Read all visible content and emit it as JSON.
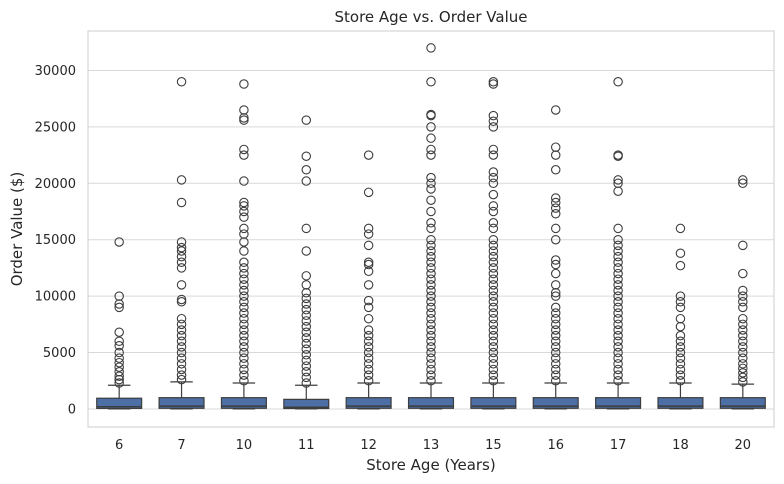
{
  "chart_data": {
    "type": "box",
    "title": "Store Age vs. Order Value",
    "xlabel": "Store Age (Years)",
    "ylabel": "Order Value ($)",
    "ylim": [
      -1600,
      33500
    ],
    "yticks": [
      0,
      5000,
      10000,
      15000,
      20000,
      25000,
      30000
    ],
    "grid": "horizontal",
    "colors": {
      "box_fill": "#4c6fa5",
      "box_edge": "#3d3d3d",
      "grid": "#d9d9d9",
      "axes_edge": "#cccccc"
    },
    "categories": [
      "6",
      "7",
      "10",
      "11",
      "12",
      "13",
      "15",
      "16",
      "17",
      "18",
      "20"
    ],
    "boxes": [
      {
        "q1": 50,
        "median": 200,
        "q3": 950,
        "whisker_low": 0,
        "whisker_high": 2100,
        "outliers": [
          2300,
          2600,
          2900,
          3300,
          3700,
          4100,
          4500,
          5000,
          5600,
          6000,
          6800,
          9000,
          9300,
          10000,
          14800
        ]
      },
      {
        "q1": 60,
        "median": 250,
        "q3": 1000,
        "whisker_low": 0,
        "whisker_high": 2400,
        "outliers": [
          2600,
          3000,
          3500,
          4000,
          4500,
          5000,
          5500,
          6000,
          6500,
          7000,
          7500,
          8000,
          9500,
          9700,
          11000,
          12500,
          13000,
          13500,
          14000,
          14300,
          14800,
          18300,
          20300,
          29000
        ]
      },
      {
        "q1": 60,
        "median": 250,
        "q3": 1000,
        "whisker_low": 0,
        "whisker_high": 2300,
        "outliers": [
          2500,
          3000,
          3500,
          4000,
          4500,
          5000,
          5500,
          6000,
          6500,
          7000,
          7500,
          8000,
          8500,
          9000,
          9500,
          10000,
          10500,
          11000,
          11500,
          12000,
          12500,
          13000,
          14000,
          14800,
          15500,
          16000,
          17000,
          17500,
          18000,
          18300,
          20200,
          22500,
          23000,
          25600,
          25800,
          26500,
          28800
        ]
      },
      {
        "q1": 40,
        "median": 150,
        "q3": 850,
        "whisker_low": 0,
        "whisker_high": 2100,
        "outliers": [
          2300,
          2800,
          3300,
          3800,
          4300,
          4800,
          5300,
          5800,
          6300,
          6800,
          7300,
          7800,
          8300,
          8800,
          9300,
          9800,
          10300,
          11000,
          11800,
          14000,
          16000,
          20200,
          21200,
          22400,
          25600
        ]
      },
      {
        "q1": 60,
        "median": 250,
        "q3": 1000,
        "whisker_low": 0,
        "whisker_high": 2300,
        "outliers": [
          2500,
          3000,
          3500,
          4000,
          4500,
          5000,
          5500,
          6000,
          6500,
          7000,
          8000,
          9000,
          9600,
          11000,
          12200,
          12800,
          13000,
          14500,
          15500,
          16000,
          19200,
          22500
        ]
      },
      {
        "q1": 60,
        "median": 250,
        "q3": 1000,
        "whisker_low": 0,
        "whisker_high": 2300,
        "outliers": [
          2500,
          3000,
          3500,
          4000,
          4500,
          5000,
          5500,
          6000,
          6500,
          7000,
          7500,
          8000,
          8500,
          9000,
          9500,
          10000,
          10500,
          11000,
          11500,
          12000,
          12500,
          13000,
          13500,
          14000,
          14500,
          15000,
          16000,
          16500,
          17500,
          18500,
          19500,
          20000,
          20500,
          22500,
          23000,
          24000,
          25000,
          26000,
          26100,
          29000,
          32000
        ]
      },
      {
        "q1": 60,
        "median": 250,
        "q3": 1000,
        "whisker_low": 0,
        "whisker_high": 2300,
        "outliers": [
          2500,
          3000,
          3500,
          4000,
          4500,
          5000,
          5500,
          6000,
          6500,
          7000,
          7500,
          8000,
          8500,
          9000,
          9500,
          10000,
          10500,
          11000,
          11500,
          12000,
          12500,
          13000,
          13500,
          14000,
          14500,
          15000,
          16000,
          16500,
          17500,
          18000,
          19000,
          20000,
          20500,
          21000,
          22500,
          23000,
          25000,
          25500,
          26000,
          28800,
          29000
        ]
      },
      {
        "q1": 60,
        "median": 250,
        "q3": 1000,
        "whisker_low": 0,
        "whisker_high": 2300,
        "outliers": [
          2500,
          3000,
          3500,
          4000,
          4500,
          5000,
          5500,
          6000,
          6500,
          7000,
          7500,
          8000,
          8500,
          9000,
          10000,
          10300,
          11000,
          12000,
          12800,
          13200,
          15000,
          16000,
          17300,
          17800,
          18300,
          18700,
          21200,
          22500,
          23200,
          26500
        ]
      },
      {
        "q1": 60,
        "median": 250,
        "q3": 1000,
        "whisker_low": 0,
        "whisker_high": 2300,
        "outliers": [
          2500,
          3000,
          3500,
          4000,
          4500,
          5000,
          5500,
          6000,
          6500,
          7000,
          7500,
          8000,
          8500,
          9000,
          9500,
          10000,
          10500,
          11000,
          11500,
          12000,
          12500,
          13000,
          13500,
          14000,
          14500,
          15000,
          16000,
          19300,
          20000,
          20300,
          22400,
          22500,
          29000
        ]
      },
      {
        "q1": 60,
        "median": 250,
        "q3": 1000,
        "whisker_low": 0,
        "whisker_high": 2300,
        "outliers": [
          2500,
          3000,
          3500,
          4000,
          4500,
          5000,
          5500,
          6000,
          6500,
          7300,
          8000,
          9000,
          9500,
          10000,
          12700,
          13800,
          16000
        ]
      },
      {
        "q1": 60,
        "median": 250,
        "q3": 1000,
        "whisker_low": 0,
        "whisker_high": 2200,
        "outliers": [
          2400,
          2800,
          3200,
          3600,
          4000,
          4500,
          5000,
          5500,
          6000,
          6500,
          7000,
          7500,
          8000,
          9000,
          9500,
          10000,
          10500,
          12000,
          14500,
          20000,
          20300
        ]
      }
    ]
  }
}
